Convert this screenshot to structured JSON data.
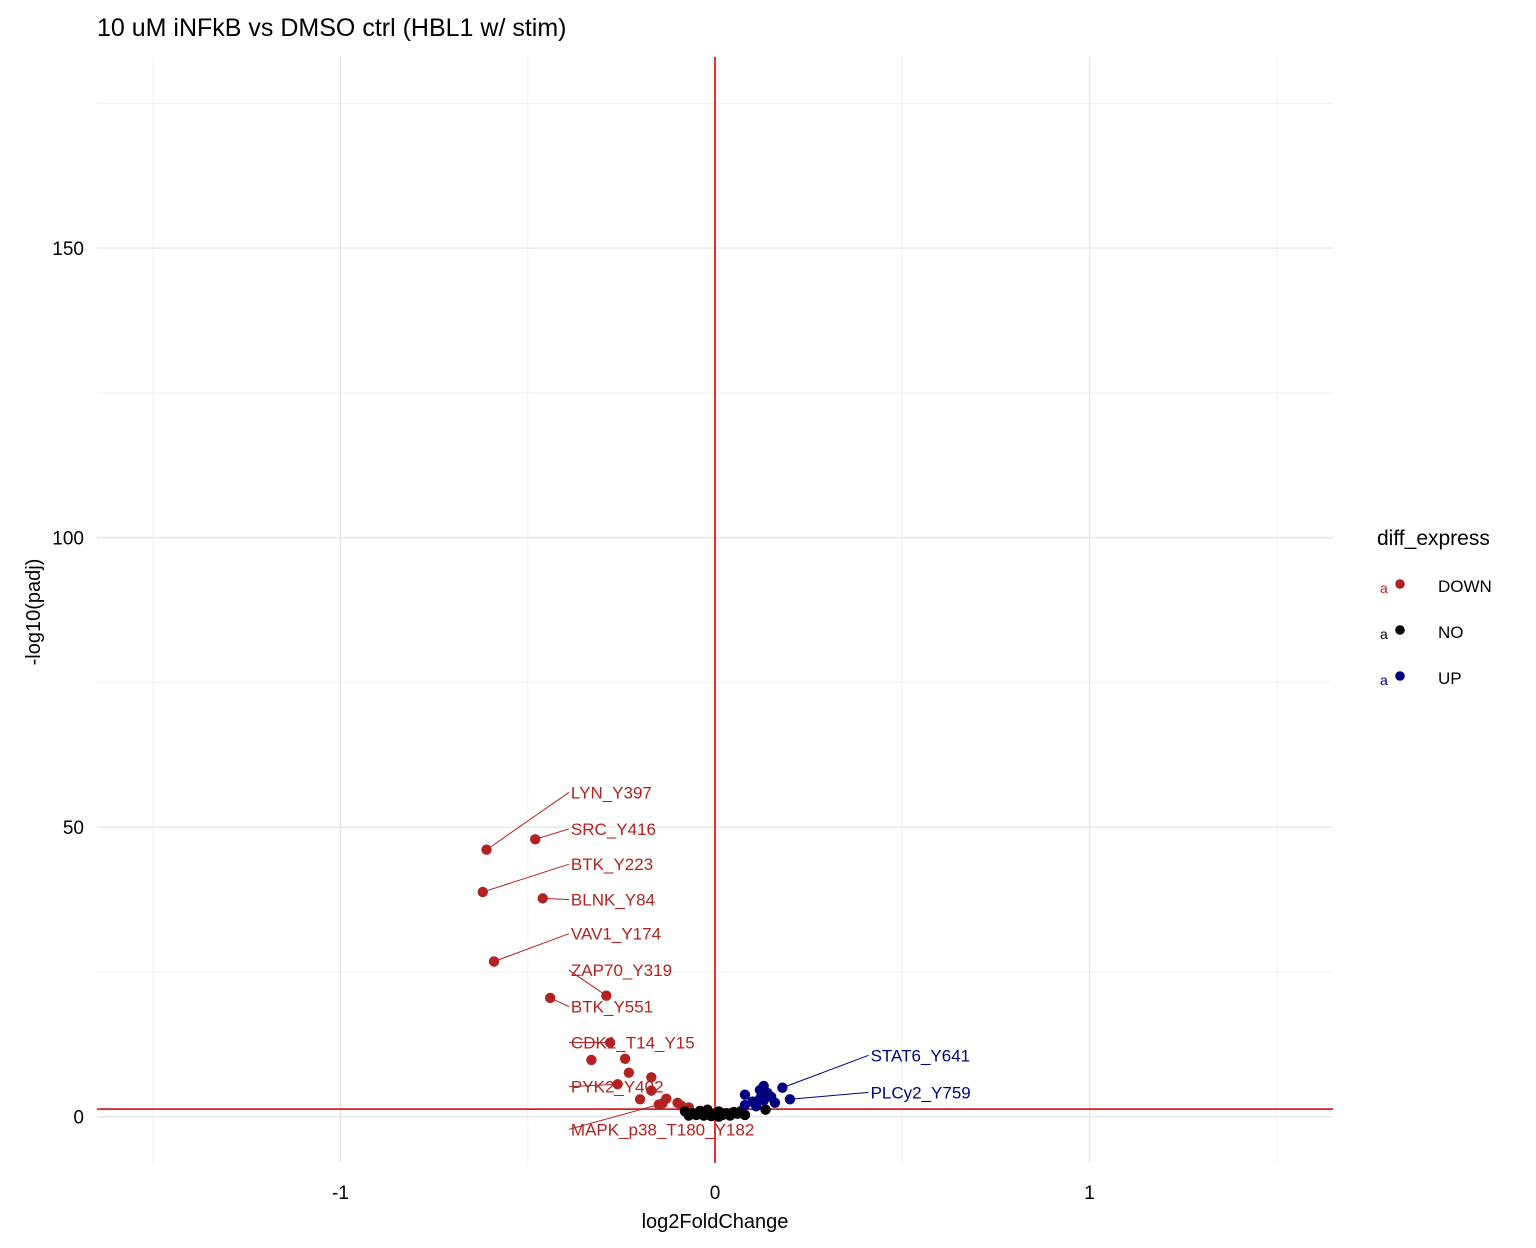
{
  "chart_data": {
    "type": "scatter",
    "title": "10 uM iNFkB vs DMSO ctrl (HBL1 w/ stim)",
    "xlabel": "log2FoldChange",
    "ylabel": "-log10(padj)",
    "xlim": [
      -1.65,
      1.65
    ],
    "ylim": [
      -8,
      183
    ],
    "x_ticks": [
      -1,
      0,
      1
    ],
    "x_tick_labels": [
      "-1",
      "0",
      "1"
    ],
    "y_ticks": [
      0,
      50,
      100,
      150
    ],
    "y_tick_labels": [
      "0",
      "50",
      "100",
      "150"
    ],
    "x_minor": [
      -1.5,
      -0.5,
      0.5,
      1.5
    ],
    "y_minor": [
      25,
      75,
      125,
      175
    ],
    "grid": true,
    "vline_x": 0,
    "hline_y": 1.3,
    "threshold_color": "#e41a1c",
    "legend": {
      "title": "diff_express",
      "position": "right",
      "key_letter": "a",
      "entries": [
        {
          "label": "DOWN",
          "color": "#b22222"
        },
        {
          "label": "NO",
          "color": "#000000"
        },
        {
          "label": "UP",
          "color": "#000080"
        }
      ]
    },
    "series": [
      {
        "name": "DOWN",
        "color": "#b22222",
        "points": [
          {
            "x": -0.61,
            "y": 46.1,
            "label": "LYN_Y397",
            "label_x": -0.39,
            "label_y": 56.0
          },
          {
            "x": -0.48,
            "y": 47.9,
            "label": "SRC_Y416",
            "label_x": -0.39,
            "label_y": 49.7
          },
          {
            "x": -0.62,
            "y": 38.8,
            "label": "BTK_Y223",
            "label_x": -0.39,
            "label_y": 43.6
          },
          {
            "x": -0.46,
            "y": 37.7,
            "label": "BLNK_Y84",
            "label_x": -0.39,
            "label_y": 37.5
          },
          {
            "x": -0.59,
            "y": 26.8,
            "label": "VAV1_Y174",
            "label_x": -0.39,
            "label_y": 31.6
          },
          {
            "x": -0.29,
            "y": 20.9,
            "label": "ZAP70_Y319",
            "label_x": -0.39,
            "label_y": 25.3
          },
          {
            "x": -0.44,
            "y": 20.5,
            "label": "BTK_Y551",
            "label_x": -0.39,
            "label_y": 19.0
          },
          {
            "x": -0.28,
            "y": 12.8,
            "label": "CDK1_T14_Y15",
            "label_x": -0.39,
            "label_y": 12.8
          },
          {
            "x": -0.33,
            "y": 9.8
          },
          {
            "x": -0.24,
            "y": 10.0
          },
          {
            "x": -0.23,
            "y": 7.6
          },
          {
            "x": -0.26,
            "y": 5.6,
            "label": "PYK2_Y402",
            "label_x": -0.39,
            "label_y": 5.2
          },
          {
            "x": -0.17,
            "y": 4.5
          },
          {
            "x": -0.17,
            "y": 6.8
          },
          {
            "x": -0.2,
            "y": 3.0
          },
          {
            "x": -0.15,
            "y": 2.1,
            "label": "MAPK_p38_T180_Y182",
            "label_x": -0.39,
            "label_y": -2.2
          },
          {
            "x": -0.13,
            "y": 3.1
          },
          {
            "x": -0.14,
            "y": 2.3
          },
          {
            "x": -0.1,
            "y": 2.4
          },
          {
            "x": -0.09,
            "y": 1.9
          },
          {
            "x": -0.07,
            "y": 1.6
          }
        ]
      },
      {
        "name": "NO",
        "color": "#000000",
        "points": [
          {
            "x": -0.08,
            "y": 0.9
          },
          {
            "x": -0.06,
            "y": 0.6
          },
          {
            "x": -0.05,
            "y": 0.3
          },
          {
            "x": -0.04,
            "y": 1.0
          },
          {
            "x": -0.03,
            "y": 0.2
          },
          {
            "x": -0.02,
            "y": 0.5
          },
          {
            "x": -0.01,
            "y": 0.1
          },
          {
            "x": 0.0,
            "y": 0.4
          },
          {
            "x": 0.01,
            "y": 0.0
          },
          {
            "x": 0.02,
            "y": 0.3
          },
          {
            "x": 0.03,
            "y": 0.6
          },
          {
            "x": 0.04,
            "y": 0.2
          },
          {
            "x": 0.05,
            "y": 0.8
          },
          {
            "x": 0.06,
            "y": 0.5
          },
          {
            "x": 0.07,
            "y": 1.0
          },
          {
            "x": -0.02,
            "y": 1.2
          },
          {
            "x": 0.01,
            "y": 0.9
          },
          {
            "x": 0.135,
            "y": 1.2
          },
          {
            "x": -0.07,
            "y": 0.2
          },
          {
            "x": 0.08,
            "y": 0.3
          }
        ]
      },
      {
        "name": "UP",
        "color": "#000080",
        "points": [
          {
            "x": 0.18,
            "y": 5.0,
            "label": "STAT6_Y641",
            "label_x": 0.41,
            "label_y": 10.6
          },
          {
            "x": 0.2,
            "y": 3.0,
            "label": "PLCy2_Y759",
            "label_x": 0.41,
            "label_y": 4.2
          },
          {
            "x": 0.08,
            "y": 3.8
          },
          {
            "x": 0.12,
            "y": 4.6
          },
          {
            "x": 0.13,
            "y": 5.3
          },
          {
            "x": 0.14,
            "y": 4.1
          },
          {
            "x": 0.12,
            "y": 3.1
          },
          {
            "x": 0.1,
            "y": 2.6
          },
          {
            "x": 0.08,
            "y": 2.0
          },
          {
            "x": 0.16,
            "y": 2.4
          },
          {
            "x": 0.11,
            "y": 1.8
          },
          {
            "x": 0.13,
            "y": 2.8
          },
          {
            "x": 0.15,
            "y": 3.4
          }
        ]
      }
    ]
  }
}
